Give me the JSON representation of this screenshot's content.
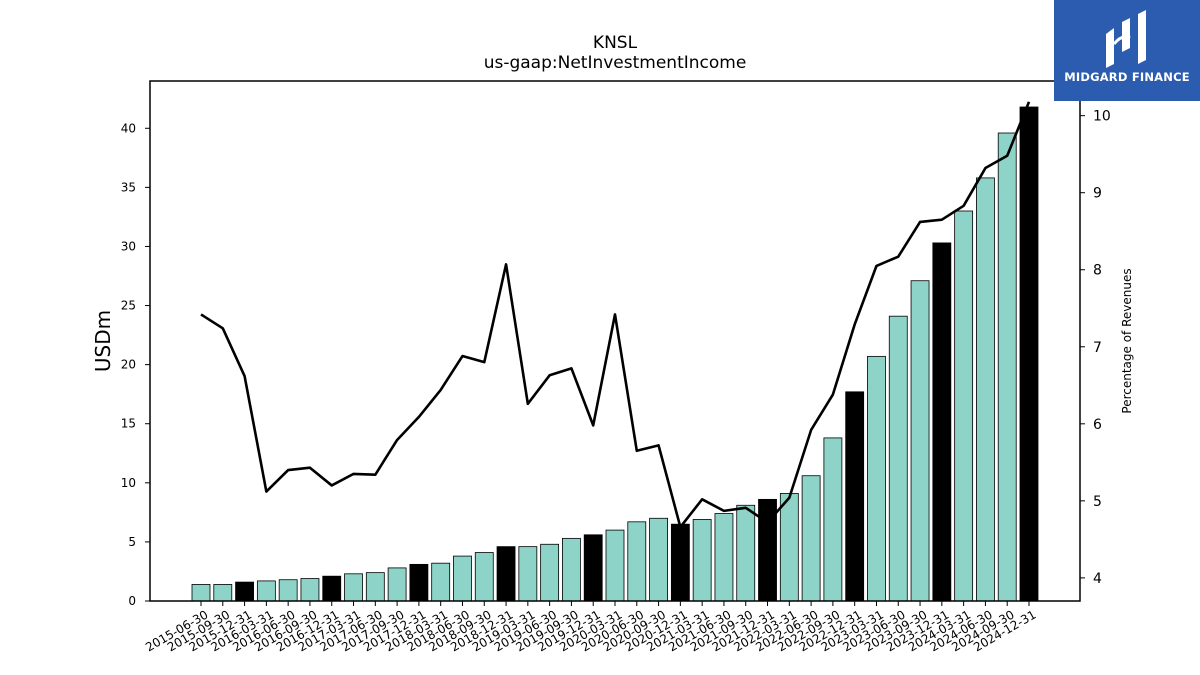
{
  "title": "KNSL",
  "subtitle": "us-gaap:NetInvestmentIncome",
  "logo": {
    "text": "MIDGARD FINANCE",
    "color": "#2b5cb0"
  },
  "chart_data": {
    "type": "bar",
    "categories": [
      "2015-06-30",
      "2015-09-30",
      "2015-12-31",
      "2016-03-31",
      "2016-06-30",
      "2016-09-30",
      "2016-12-31",
      "2017-03-31",
      "2017-06-30",
      "2017-09-30",
      "2017-12-31",
      "2018-03-31",
      "2018-06-30",
      "2018-09-30",
      "2018-12-31",
      "2019-03-31",
      "2019-06-30",
      "2019-09-30",
      "2019-12-31",
      "2020-03-31",
      "2020-06-30",
      "2020-09-30",
      "2020-12-31",
      "2021-03-31",
      "2021-06-30",
      "2021-09-30",
      "2021-12-31",
      "2022-03-31",
      "2022-06-30",
      "2022-09-30",
      "2022-12-31",
      "2023-03-31",
      "2023-06-30",
      "2023-09-30",
      "2023-12-31",
      "2024-03-31",
      "2024-06-30",
      "2024-09-30",
      "2024-12-31"
    ],
    "series": [
      {
        "axis": "left",
        "values": [
          1.4,
          1.4,
          1.6,
          1.7,
          1.8,
          1.9,
          2.1,
          2.3,
          2.4,
          2.8,
          3.1,
          3.2,
          3.8,
          4.1,
          4.6,
          4.6,
          4.8,
          5.3,
          5.6,
          6.0,
          6.7,
          7.0,
          6.5,
          6.9,
          7.4,
          8.1,
          8.6,
          9.1,
          10.6,
          13.8,
          17.7,
          20.7,
          24.1,
          27.1,
          30.3,
          33.0,
          35.8,
          39.6,
          41.8
        ],
        "colors": [
          "#8dd3c7",
          "#8dd3c7",
          "#000000",
          "#8dd3c7",
          "#8dd3c7",
          "#8dd3c7",
          "#000000",
          "#8dd3c7",
          "#8dd3c7",
          "#8dd3c7",
          "#000000",
          "#8dd3c7",
          "#8dd3c7",
          "#8dd3c7",
          "#000000",
          "#8dd3c7",
          "#8dd3c7",
          "#8dd3c7",
          "#000000",
          "#8dd3c7",
          "#8dd3c7",
          "#8dd3c7",
          "#000000",
          "#8dd3c7",
          "#8dd3c7",
          "#8dd3c7",
          "#000000",
          "#8dd3c7",
          "#8dd3c7",
          "#8dd3c7",
          "#000000",
          "#8dd3c7",
          "#8dd3c7",
          "#8dd3c7",
          "#000000",
          "#8dd3c7",
          "#8dd3c7",
          "#8dd3c7",
          "#000000"
        ]
      },
      {
        "type": "line",
        "axis": "right",
        "color": "#000000",
        "values": [
          7.42,
          7.24,
          6.62,
          5.12,
          5.4,
          5.43,
          5.2,
          5.35,
          5.34,
          5.79,
          6.09,
          6.44,
          6.88,
          6.8,
          8.07,
          6.26,
          6.63,
          6.72,
          5.98,
          7.42,
          5.65,
          5.72,
          4.66,
          5.02,
          4.87,
          4.91,
          4.72,
          5.04,
          5.92,
          6.38,
          7.29,
          8.05,
          8.17,
          8.62,
          8.65,
          8.83,
          9.32,
          9.48,
          10.18
        ]
      }
    ],
    "ylabel": "USDm",
    "ylabel_right": "Percentage of Revenues",
    "ylim": [
      0,
      44
    ],
    "ylim_right": [
      3.7,
      10.45
    ],
    "yticks": [
      0,
      5,
      10,
      15,
      20,
      25,
      30,
      35,
      40
    ],
    "yticks_right": [
      4,
      5,
      6,
      7,
      8,
      9,
      10
    ],
    "grid": false,
    "legend": "none"
  }
}
